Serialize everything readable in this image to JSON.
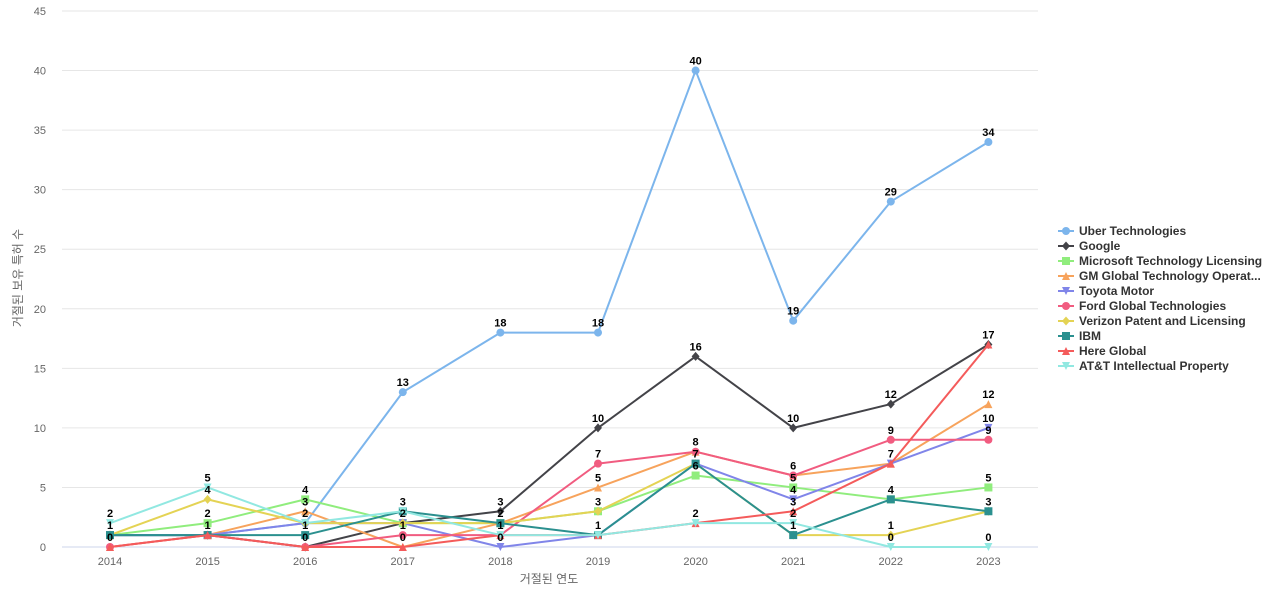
{
  "chart_data": {
    "type": "line",
    "title": "",
    "xlabel": "거절된 연도",
    "ylabel": "거절된 보유 특허 수",
    "categories": [
      "2014",
      "2015",
      "2016",
      "2017",
      "2018",
      "2019",
      "2020",
      "2021",
      "2022",
      "2023"
    ],
    "y_ticks": [
      "0",
      "5",
      "10",
      "15",
      "20",
      "25",
      "30",
      "35",
      "40",
      "45"
    ],
    "ylim": [
      0,
      45
    ],
    "grid": true,
    "legend_position": "right",
    "series": [
      {
        "name": "Uber Technologies",
        "color": "#7cb5ec",
        "marker": "circle",
        "values": [
          1,
          1,
          2,
          13,
          18,
          18,
          40,
          19,
          29,
          34
        ]
      },
      {
        "name": "Google",
        "color": "#434348",
        "marker": "diamond",
        "values": [
          1,
          1,
          0,
          2,
          3,
          10,
          16,
          10,
          12,
          17
        ]
      },
      {
        "name": "Microsoft Technology Licensing",
        "color": "#90ed7d",
        "marker": "square",
        "values": [
          1,
          2,
          4,
          2,
          2,
          3,
          6,
          5,
          4,
          5
        ]
      },
      {
        "name": "GM Global Technology Operat...",
        "color": "#f7a35c",
        "marker": "triangle",
        "values": [
          0,
          1,
          3,
          0,
          2,
          5,
          8,
          6,
          7,
          12
        ]
      },
      {
        "name": "Toyota Motor",
        "color": "#8085e9",
        "marker": "triangle-down",
        "values": [
          1,
          1,
          2,
          2,
          0,
          1,
          7,
          4,
          7,
          10
        ]
      },
      {
        "name": "Ford Global Technologies",
        "color": "#f15c80",
        "marker": "circle",
        "values": [
          0,
          1,
          0,
          1,
          1,
          7,
          8,
          6,
          9,
          9
        ]
      },
      {
        "name": "Verizon Patent and Licensing",
        "color": "#e4d354",
        "marker": "diamond",
        "values": [
          1,
          4,
          2,
          2,
          2,
          3,
          7,
          1,
          1,
          3
        ]
      },
      {
        "name": "IBM",
        "color": "#2b908f",
        "marker": "square",
        "values": [
          1,
          1,
          1,
          3,
          2,
          1,
          7,
          1,
          4,
          3
        ]
      },
      {
        "name": "Here Global",
        "color": "#f45b5b",
        "marker": "triangle",
        "values": [
          0,
          1,
          0,
          0,
          1,
          1,
          2,
          3,
          7,
          17
        ]
      },
      {
        "name": "AT&T Intellectual Property",
        "color": "#91e8e1",
        "marker": "triangle-down",
        "values": [
          2,
          5,
          2,
          3,
          1,
          1,
          2,
          2,
          0,
          0
        ]
      }
    ],
    "data_labels": [
      [
        2014,
        2,
        "2"
      ],
      [
        2014,
        1,
        "1"
      ],
      [
        2014,
        0,
        "0"
      ],
      [
        2015,
        5,
        "5"
      ],
      [
        2015,
        4,
        "4"
      ],
      [
        2015,
        2,
        "2"
      ],
      [
        2015,
        1,
        "1"
      ],
      [
        2016,
        4,
        "4"
      ],
      [
        2016,
        3,
        "3"
      ],
      [
        2016,
        2,
        "2"
      ],
      [
        2016,
        1,
        "1"
      ],
      [
        2016,
        0,
        "0"
      ],
      [
        2017,
        13,
        "13"
      ],
      [
        2017,
        3,
        "3"
      ],
      [
        2017,
        2,
        "2"
      ],
      [
        2017,
        1,
        "1"
      ],
      [
        2017,
        0,
        "0"
      ],
      [
        2018,
        18,
        "18"
      ],
      [
        2018,
        3,
        "3"
      ],
      [
        2018,
        2,
        "2"
      ],
      [
        2018,
        1,
        "1"
      ],
      [
        2018,
        0,
        "0"
      ],
      [
        2019,
        18,
        "18"
      ],
      [
        2019,
        10,
        "10"
      ],
      [
        2019,
        7,
        "7"
      ],
      [
        2019,
        5,
        "5"
      ],
      [
        2019,
        3,
        "3"
      ],
      [
        2019,
        1,
        "1"
      ],
      [
        2020,
        40,
        "40"
      ],
      [
        2020,
        16,
        "16"
      ],
      [
        2020,
        8,
        "8"
      ],
      [
        2020,
        7,
        "7"
      ],
      [
        2020,
        6,
        "6"
      ],
      [
        2020,
        2,
        "2"
      ],
      [
        2021,
        19,
        "19"
      ],
      [
        2021,
        10,
        "10"
      ],
      [
        2021,
        6,
        "6"
      ],
      [
        2021,
        5,
        "5"
      ],
      [
        2021,
        4,
        "4"
      ],
      [
        2021,
        3,
        "3"
      ],
      [
        2021,
        2,
        "2"
      ],
      [
        2021,
        1,
        "1"
      ],
      [
        2022,
        29,
        "29"
      ],
      [
        2022,
        12,
        "12"
      ],
      [
        2022,
        9,
        "9"
      ],
      [
        2022,
        7,
        "7"
      ],
      [
        2022,
        4,
        "4"
      ],
      [
        2022,
        1,
        "1"
      ],
      [
        2022,
        0,
        "0"
      ],
      [
        2023,
        34,
        "34"
      ],
      [
        2023,
        17,
        "17"
      ],
      [
        2023,
        12,
        "12"
      ],
      [
        2023,
        10,
        "10"
      ],
      [
        2023,
        9,
        "9"
      ],
      [
        2023,
        5,
        "5"
      ],
      [
        2023,
        3,
        "3"
      ],
      [
        2023,
        0,
        "0"
      ]
    ]
  }
}
